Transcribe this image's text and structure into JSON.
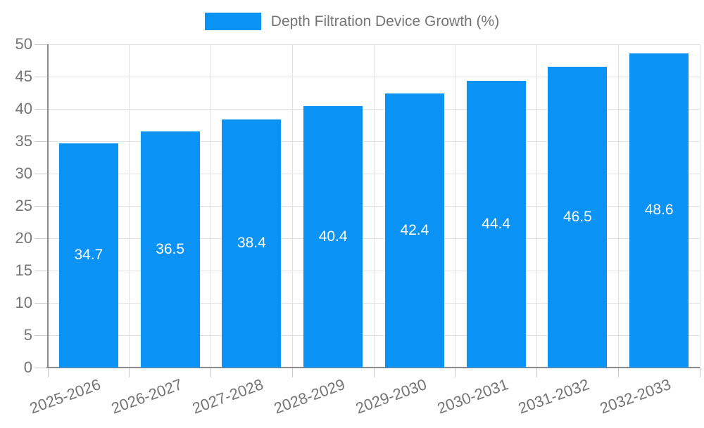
{
  "chart_data": {
    "type": "bar",
    "title": "Depth Filtration Device Growth (%)",
    "series_name": "Depth Filtration Device Growth (%)",
    "categories": [
      "2025-2026",
      "2026-2027",
      "2027-2028",
      "2028-2029",
      "2029-2030",
      "2030-2031",
      "2031-2032",
      "2032-2033"
    ],
    "values": [
      34.7,
      36.5,
      38.4,
      40.4,
      42.4,
      44.4,
      46.5,
      48.6
    ],
    "xlabel": "",
    "ylabel": "",
    "ylim": [
      0,
      50
    ],
    "ytick_interval": 5,
    "ytick_labels": [
      "0",
      "5",
      "10",
      "15",
      "20",
      "25",
      "30",
      "35",
      "40",
      "45",
      "50"
    ],
    "grid": true,
    "legend_position": "top-center",
    "x_label_rotation_deg": -20,
    "colors": {
      "bar": "#0b92f5",
      "bar_value_label": "#ffffff",
      "axis": "#8a8a8a",
      "gridline": "#e2e2e2",
      "tick": "#c9c9c9",
      "tick_label": "#757575",
      "background": "#ffffff"
    }
  }
}
